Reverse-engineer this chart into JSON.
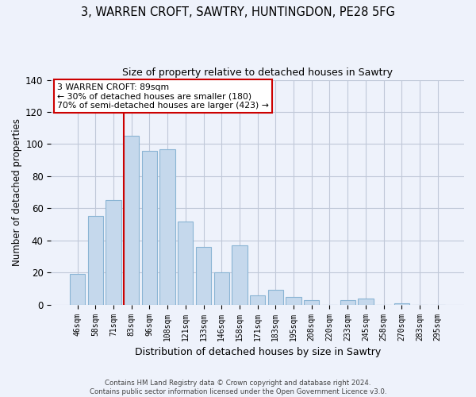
{
  "title1": "3, WARREN CROFT, SAWTRY, HUNTINGDON, PE28 5FG",
  "title2": "Size of property relative to detached houses in Sawtry",
  "xlabel": "Distribution of detached houses by size in Sawtry",
  "ylabel": "Number of detached properties",
  "categories": [
    "46sqm",
    "58sqm",
    "71sqm",
    "83sqm",
    "96sqm",
    "108sqm",
    "121sqm",
    "133sqm",
    "146sqm",
    "158sqm",
    "171sqm",
    "183sqm",
    "195sqm",
    "208sqm",
    "220sqm",
    "233sqm",
    "245sqm",
    "258sqm",
    "270sqm",
    "283sqm",
    "295sqm"
  ],
  "values": [
    19,
    55,
    65,
    105,
    96,
    97,
    52,
    36,
    20,
    37,
    6,
    9,
    5,
    3,
    0,
    3,
    4,
    0,
    1,
    0,
    0
  ],
  "bar_color": "#c5d8ec",
  "bar_edge_color": "#8ab4d4",
  "vline_x_index": 3,
  "vline_color": "#cc0000",
  "annotation_line1": "3 WARREN CROFT: 89sqm",
  "annotation_line2": "← 30% of detached houses are smaller (180)",
  "annotation_line3": "70% of semi-detached houses are larger (423) →",
  "ylim": [
    0,
    140
  ],
  "yticks": [
    0,
    20,
    40,
    60,
    80,
    100,
    120,
    140
  ],
  "footer1": "Contains HM Land Registry data © Crown copyright and database right 2024.",
  "footer2": "Contains public sector information licensed under the Open Government Licence v3.0.",
  "background_color": "#eef2fb",
  "plot_background_color": "#eef2fb",
  "grid_color": "#c0c8d8"
}
